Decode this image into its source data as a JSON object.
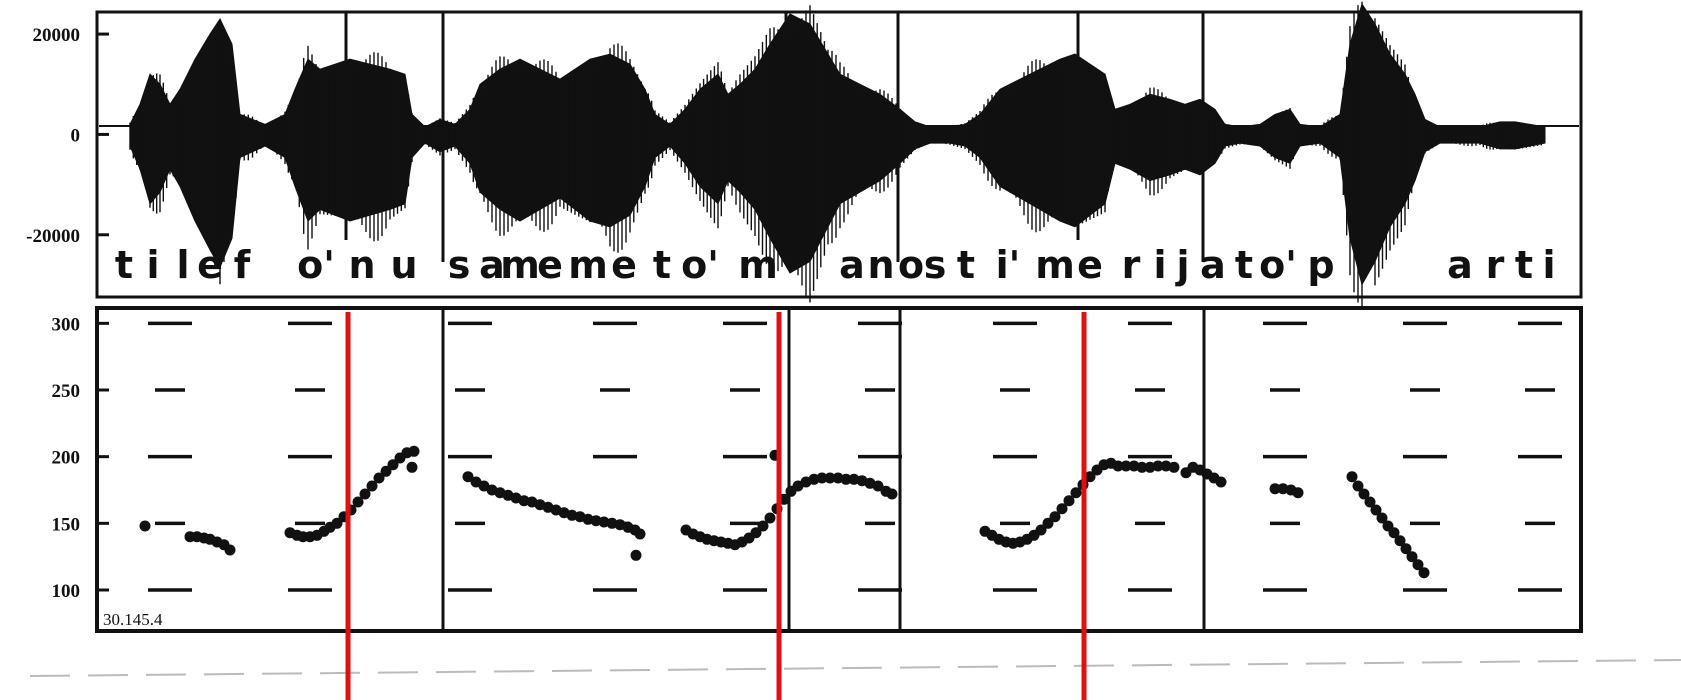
{
  "chart_data": [
    {
      "type": "line",
      "title": "",
      "xlabel": "",
      "ylabel": "",
      "ylim": [
        -32000,
        24000
      ],
      "yticks": [
        20000,
        0,
        -20000
      ],
      "ytick_labels": [
        "20000",
        "0",
        "-20000"
      ],
      "grid": false,
      "segment_labels": [
        "t",
        "i",
        "l",
        "e",
        "f",
        "o'",
        "n",
        "u",
        "s",
        "a",
        "m",
        "e",
        "m",
        "e",
        "t",
        "o'",
        "m",
        "a",
        "n",
        "o",
        "s",
        "t",
        "i'",
        "m",
        "e",
        "r",
        "i",
        "j",
        "a",
        "t",
        "o'",
        "p",
        "a",
        "r",
        "t",
        "i"
      ],
      "envelope": [
        [
          130,
          2000
        ],
        [
          140,
          6000
        ],
        [
          150,
          12000
        ],
        [
          160,
          10000
        ],
        [
          170,
          6000
        ],
        [
          180,
          9000
        ],
        [
          195,
          15000
        ],
        [
          210,
          20000
        ],
        [
          220,
          23000
        ],
        [
          232,
          18000
        ],
        [
          240,
          4000
        ],
        [
          265,
          2000
        ],
        [
          285,
          4000
        ],
        [
          295,
          9000
        ],
        [
          308,
          15000
        ],
        [
          320,
          13000
        ],
        [
          335,
          14000
        ],
        [
          350,
          15000
        ],
        [
          370,
          14000
        ],
        [
          390,
          13000
        ],
        [
          405,
          12000
        ],
        [
          412,
          4000
        ],
        [
          425,
          1500
        ],
        [
          440,
          3000
        ],
        [
          455,
          2000
        ],
        [
          470,
          5000
        ],
        [
          480,
          10000
        ],
        [
          500,
          13000
        ],
        [
          520,
          15000
        ],
        [
          540,
          13000
        ],
        [
          560,
          11000
        ],
        [
          575,
          13000
        ],
        [
          590,
          15000
        ],
        [
          610,
          16000
        ],
        [
          630,
          14000
        ],
        [
          645,
          9000
        ],
        [
          655,
          4000
        ],
        [
          670,
          2000
        ],
        [
          685,
          5000
        ],
        [
          700,
          9000
        ],
        [
          718,
          12000
        ],
        [
          728,
          8000
        ],
        [
          740,
          10000
        ],
        [
          755,
          13000
        ],
        [
          770,
          18000
        ],
        [
          790,
          24000
        ],
        [
          810,
          22000
        ],
        [
          828,
          16000
        ],
        [
          840,
          12000
        ],
        [
          860,
          10000
        ],
        [
          880,
          8000
        ],
        [
          900,
          5000
        ],
        [
          915,
          2500
        ],
        [
          930,
          1500
        ],
        [
          950,
          1500
        ],
        [
          965,
          2000
        ],
        [
          980,
          4000
        ],
        [
          1000,
          9000
        ],
        [
          1020,
          11000
        ],
        [
          1040,
          13000
        ],
        [
          1060,
          15000
        ],
        [
          1075,
          16000
        ],
        [
          1090,
          14000
        ],
        [
          1105,
          12000
        ],
        [
          1115,
          5000
        ],
        [
          1130,
          6000
        ],
        [
          1150,
          8000
        ],
        [
          1170,
          7000
        ],
        [
          1185,
          6000
        ],
        [
          1200,
          7000
        ],
        [
          1215,
          5000
        ],
        [
          1225,
          2000
        ],
        [
          1240,
          1500
        ],
        [
          1260,
          2000
        ],
        [
          1275,
          4000
        ],
        [
          1290,
          5000
        ],
        [
          1300,
          2000
        ],
        [
          1320,
          1500
        ],
        [
          1340,
          4000
        ],
        [
          1350,
          18000
        ],
        [
          1362,
          26000
        ],
        [
          1375,
          22000
        ],
        [
          1390,
          16000
        ],
        [
          1405,
          12000
        ],
        [
          1415,
          8000
        ],
        [
          1425,
          3000
        ],
        [
          1440,
          1500
        ],
        [
          1460,
          1500
        ],
        [
          1480,
          1500
        ],
        [
          1490,
          2000
        ],
        [
          1500,
          2500
        ],
        [
          1515,
          2500
        ],
        [
          1530,
          2000
        ],
        [
          1545,
          1500
        ]
      ]
    },
    {
      "type": "scatter",
      "title": "",
      "xlabel": "",
      "ylabel": "",
      "ylim": [
        70,
        310
      ],
      "yticks": [
        300,
        250,
        200,
        150,
        100
      ],
      "ytick_labels": [
        "300",
        "250",
        "200",
        "150",
        "100"
      ],
      "grid": false,
      "corner_label": "30.145.4",
      "series": [
        {
          "values": [
            [
              145,
              148
            ],
            [
              190,
              140
            ],
            [
              197,
              140
            ],
            [
              204,
              139
            ],
            [
              210,
              138
            ],
            [
              217,
              136
            ],
            [
              224,
              134
            ],
            [
              230,
              130
            ],
            [
              290,
              143
            ],
            [
              297,
              141
            ],
            [
              303,
              140
            ],
            [
              310,
              140
            ],
            [
              317,
              141
            ],
            [
              324,
              144
            ],
            [
              330,
              147
            ],
            [
              337,
              150
            ],
            [
              344,
              155
            ],
            [
              351,
              160
            ],
            [
              358,
              166
            ],
            [
              365,
              172
            ],
            [
              372,
              178
            ],
            [
              379,
              184
            ],
            [
              386,
              189
            ],
            [
              393,
              194
            ],
            [
              400,
              199
            ],
            [
              407,
              203
            ],
            [
              414,
              204
            ],
            [
              412,
              192
            ],
            [
              468,
              185
            ],
            [
              476,
              181
            ],
            [
              484,
              178
            ],
            [
              492,
              175
            ],
            [
              500,
              173
            ],
            [
              508,
              171
            ],
            [
              516,
              169
            ],
            [
              524,
              167
            ],
            [
              532,
              166
            ],
            [
              540,
              164
            ],
            [
              548,
              162
            ],
            [
              556,
              160
            ],
            [
              564,
              158
            ],
            [
              572,
              156
            ],
            [
              580,
              155
            ],
            [
              588,
              153
            ],
            [
              596,
              152
            ],
            [
              604,
              151
            ],
            [
              612,
              150
            ],
            [
              620,
              149
            ],
            [
              628,
              147
            ],
            [
              635,
              145
            ],
            [
              640,
              142
            ],
            [
              636,
              126
            ],
            [
              686,
              145
            ],
            [
              693,
              142
            ],
            [
              700,
              140
            ],
            [
              707,
              138
            ],
            [
              714,
              137
            ],
            [
              721,
              136
            ],
            [
              728,
              135
            ],
            [
              735,
              134
            ],
            [
              742,
              136
            ],
            [
              749,
              139
            ],
            [
              756,
              143
            ],
            [
              763,
              148
            ],
            [
              770,
              154
            ],
            [
              777,
              161
            ],
            [
              784,
              168
            ],
            [
              791,
              174
            ],
            [
              798,
              178
            ],
            [
              806,
              181
            ],
            [
              814,
              183
            ],
            [
              822,
              184
            ],
            [
              830,
              184
            ],
            [
              838,
              184
            ],
            [
              846,
              183
            ],
            [
              854,
              183
            ],
            [
              862,
              182
            ],
            [
              870,
              180
            ],
            [
              878,
              178
            ],
            [
              886,
              174
            ],
            [
              892,
              172
            ],
            [
              775,
              201
            ],
            [
              985,
              144
            ],
            [
              992,
              141
            ],
            [
              999,
              138
            ],
            [
              1006,
              136
            ],
            [
              1013,
              135
            ],
            [
              1020,
              136
            ],
            [
              1027,
              138
            ],
            [
              1034,
              141
            ],
            [
              1041,
              145
            ],
            [
              1048,
              150
            ],
            [
              1055,
              155
            ],
            [
              1062,
              161
            ],
            [
              1069,
              167
            ],
            [
              1076,
              173
            ],
            [
              1083,
              179
            ],
            [
              1090,
              185
            ],
            [
              1097,
              190
            ],
            [
              1104,
              194
            ],
            [
              1111,
              195
            ],
            [
              1118,
              193
            ],
            [
              1126,
              193
            ],
            [
              1134,
              193
            ],
            [
              1142,
              192
            ],
            [
              1150,
              192
            ],
            [
              1158,
              193
            ],
            [
              1166,
              193
            ],
            [
              1174,
              192
            ],
            [
              1186,
              188
            ],
            [
              1193,
              192
            ],
            [
              1200,
              190
            ],
            [
              1207,
              187
            ],
            [
              1214,
              184
            ],
            [
              1221,
              181
            ],
            [
              1275,
              176
            ],
            [
              1283,
              176
            ],
            [
              1291,
              175
            ],
            [
              1298,
              173
            ],
            [
              1352,
              185
            ],
            [
              1358,
              178
            ],
            [
              1364,
              172
            ],
            [
              1370,
              166
            ],
            [
              1376,
              160
            ],
            [
              1382,
              154
            ],
            [
              1388,
              148
            ],
            [
              1394,
              143
            ],
            [
              1400,
              137
            ],
            [
              1406,
              131
            ],
            [
              1412,
              125
            ],
            [
              1418,
              119
            ],
            [
              1424,
              113
            ]
          ]
        }
      ]
    }
  ]
}
